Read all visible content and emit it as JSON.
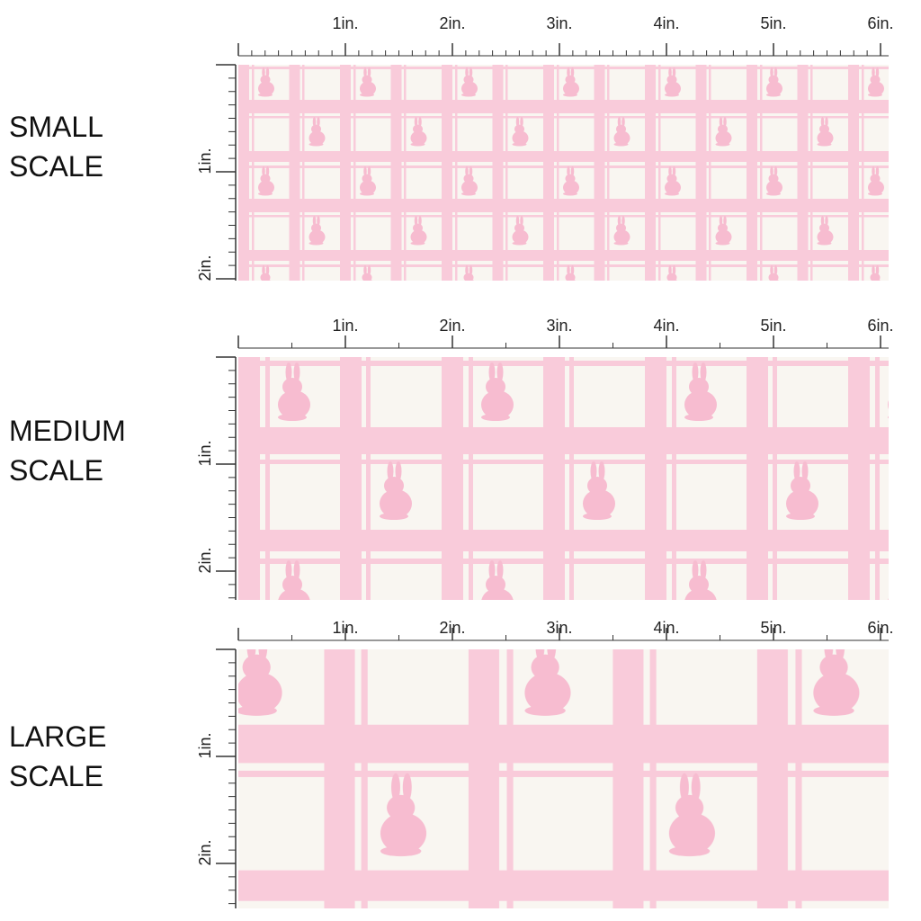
{
  "panels": [
    {
      "label": [
        "SMALL",
        "SCALE"
      ]
    },
    {
      "label": [
        "MEDIUM",
        "SCALE"
      ]
    },
    {
      "label": [
        "LARGE",
        "SCALE"
      ]
    }
  ],
  "ruler": {
    "x_labels": [
      "1in.",
      "2in.",
      "3in.",
      "4in.",
      "5in.",
      "6in."
    ],
    "y_labels": [
      "1in.",
      "2in."
    ]
  }
}
